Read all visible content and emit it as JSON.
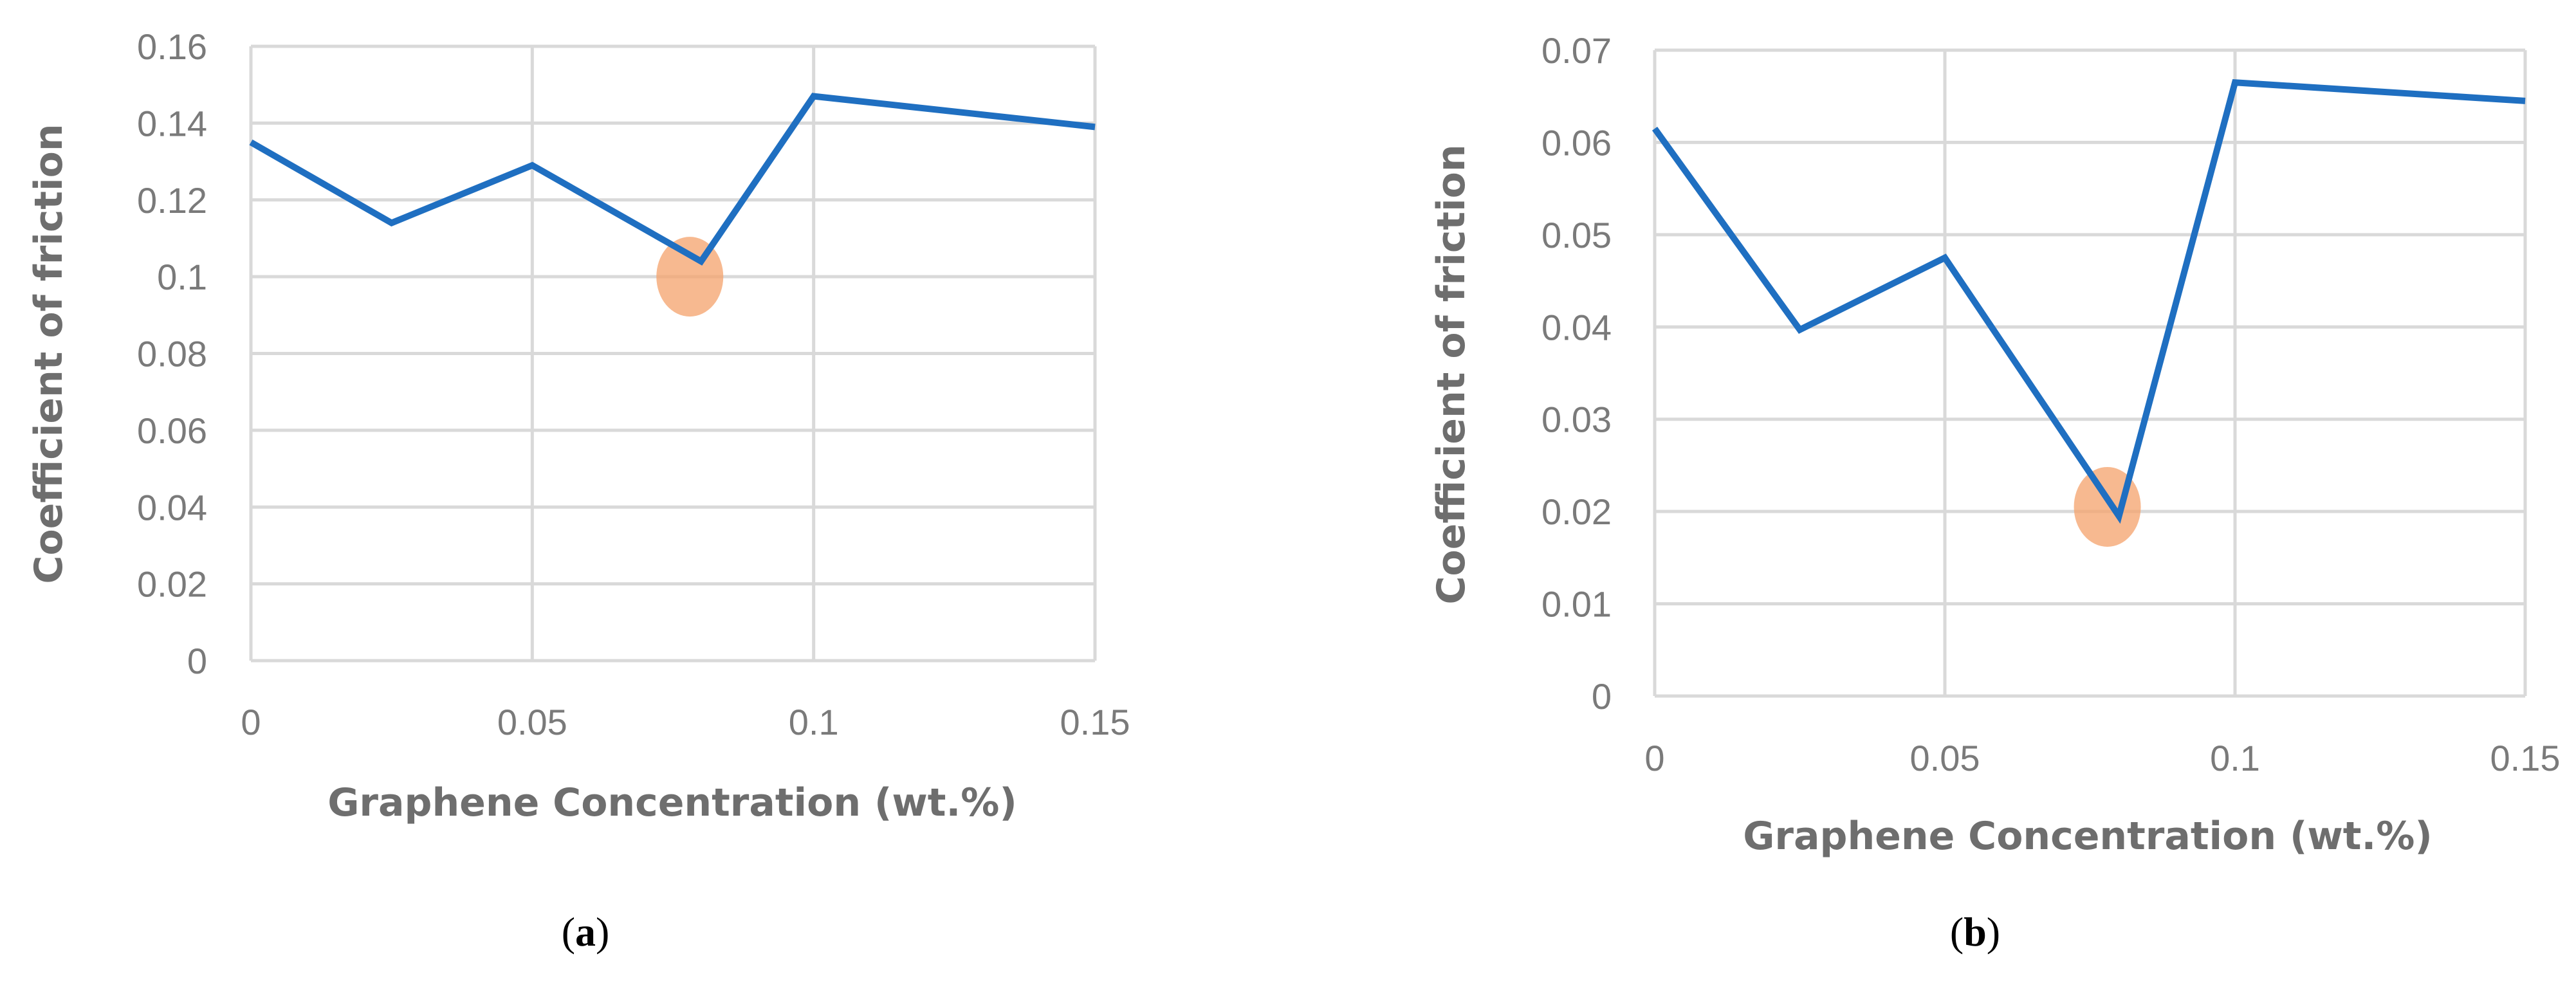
{
  "chart_data": [
    {
      "type": "line",
      "panel_label": "a",
      "xlabel": "Graphene Concentration (wt.%)",
      "ylabel": "Coefficient of friction",
      "xlim": [
        0,
        0.15
      ],
      "ylim": [
        0,
        0.16
      ],
      "x_ticks": [
        "0",
        "0.05",
        "0.1",
        "0.15"
      ],
      "x_tick_values": [
        0,
        0.05,
        0.1,
        0.15
      ],
      "y_ticks": [
        "0",
        "0.02",
        "0.04",
        "0.06",
        "0.08",
        "0.1",
        "0.12",
        "0.14",
        "0.16"
      ],
      "y_tick_values": [
        0,
        0.02,
        0.04,
        0.06,
        0.08,
        0.1,
        0.12,
        0.14,
        0.16
      ],
      "x_gridlines": [
        0.05,
        0.1,
        0.15
      ],
      "grid": true,
      "series": [
        {
          "x": [
            0,
            0.025,
            0.05,
            0.08,
            0.1,
            0.15
          ],
          "y": [
            0.135,
            0.114,
            0.129,
            0.104,
            0.147,
            0.139
          ]
        }
      ],
      "highlight": {
        "x": 0.078,
        "y": 0.1
      },
      "line_color": "#1f6fc1",
      "highlight_color": "#f4a26b"
    },
    {
      "type": "line",
      "panel_label": "b",
      "xlabel": "Graphene Concentration (wt.%)",
      "ylabel": "Coefficient of friction",
      "xlim": [
        0,
        0.15
      ],
      "ylim": [
        0,
        0.07
      ],
      "x_ticks": [
        "0",
        "0.05",
        "0.1",
        "0.15"
      ],
      "x_tick_values": [
        0,
        0.05,
        0.1,
        0.15
      ],
      "y_ticks": [
        "0",
        "0.01",
        "0.02",
        "0.03",
        "0.04",
        "0.05",
        "0.06",
        "0.07"
      ],
      "y_tick_values": [
        0,
        0.01,
        0.02,
        0.03,
        0.04,
        0.05,
        0.06,
        0.07
      ],
      "x_gridlines": [
        0.05,
        0.1,
        0.15
      ],
      "grid": true,
      "series": [
        {
          "x": [
            0,
            0.025,
            0.05,
            0.08,
            0.1,
            0.15
          ],
          "y": [
            0.0615,
            0.0397,
            0.0475,
            0.0195,
            0.0665,
            0.0645
          ]
        }
      ],
      "highlight": {
        "x": 0.078,
        "y": 0.0205
      },
      "line_color": "#1f6fc1",
      "highlight_color": "#f4a26b"
    }
  ]
}
